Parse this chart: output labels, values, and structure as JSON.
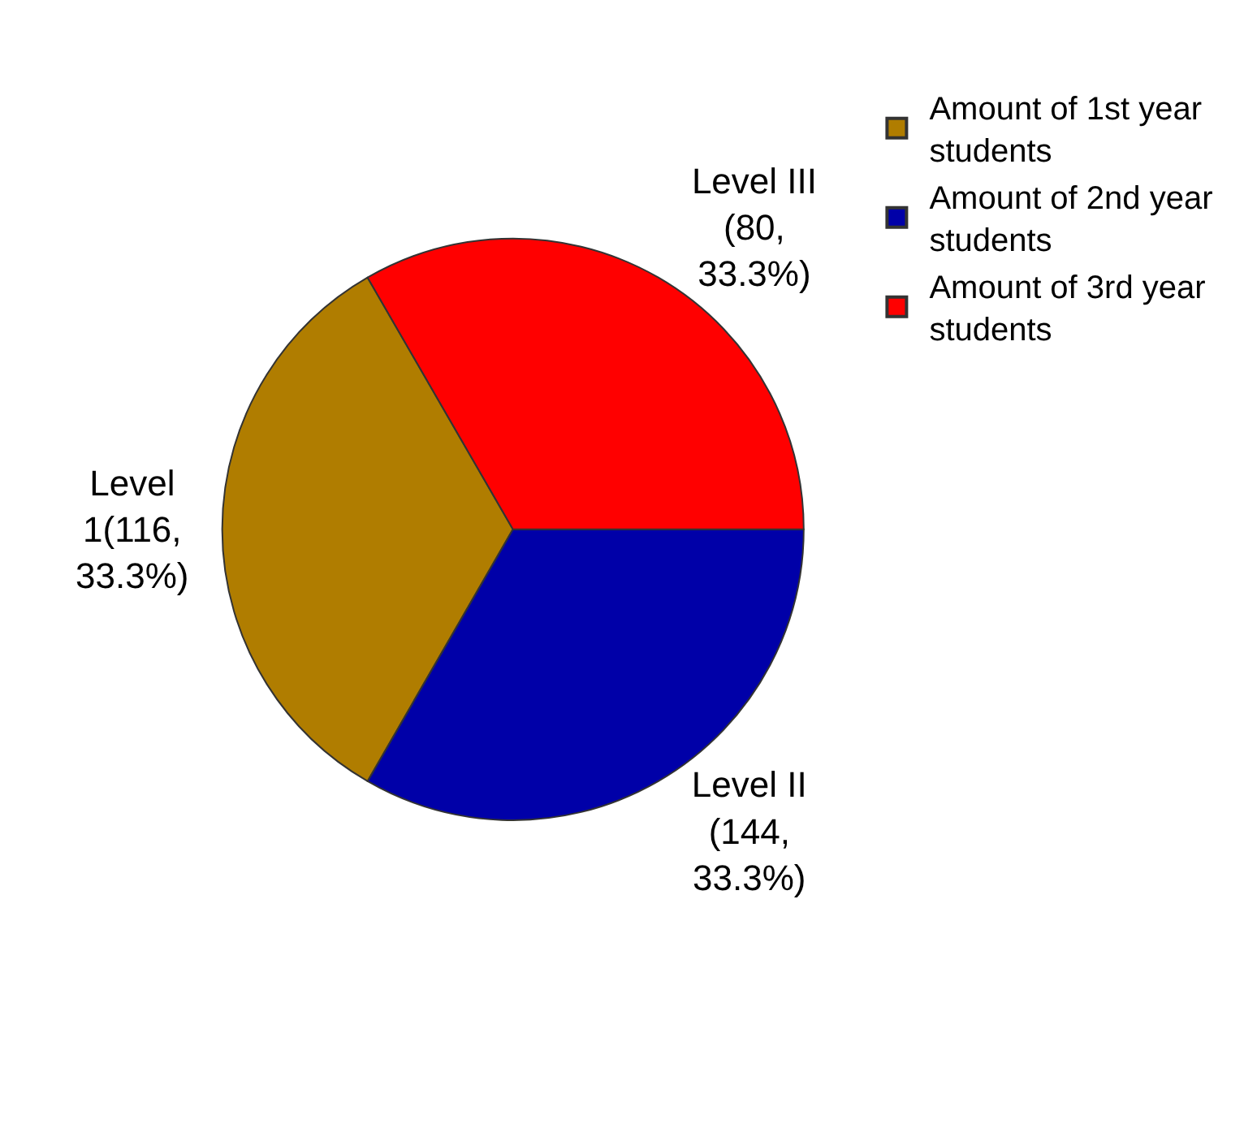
{
  "chart_data": {
    "type": "pie",
    "categories": [
      "Amount of 1st year students",
      "Amount of 2nd year students",
      "Amount of 3rd year students"
    ],
    "values": [
      33.3,
      33.3,
      33.3
    ],
    "colors": [
      "#b07d00",
      "#0000a8",
      "#ff0000"
    ],
    "value_labels": [
      "Level 1(116, 33.3%)",
      "Level II (144, 33.3%)",
      "Level III (80, 33.3%)"
    ],
    "legend": "top right"
  }
}
